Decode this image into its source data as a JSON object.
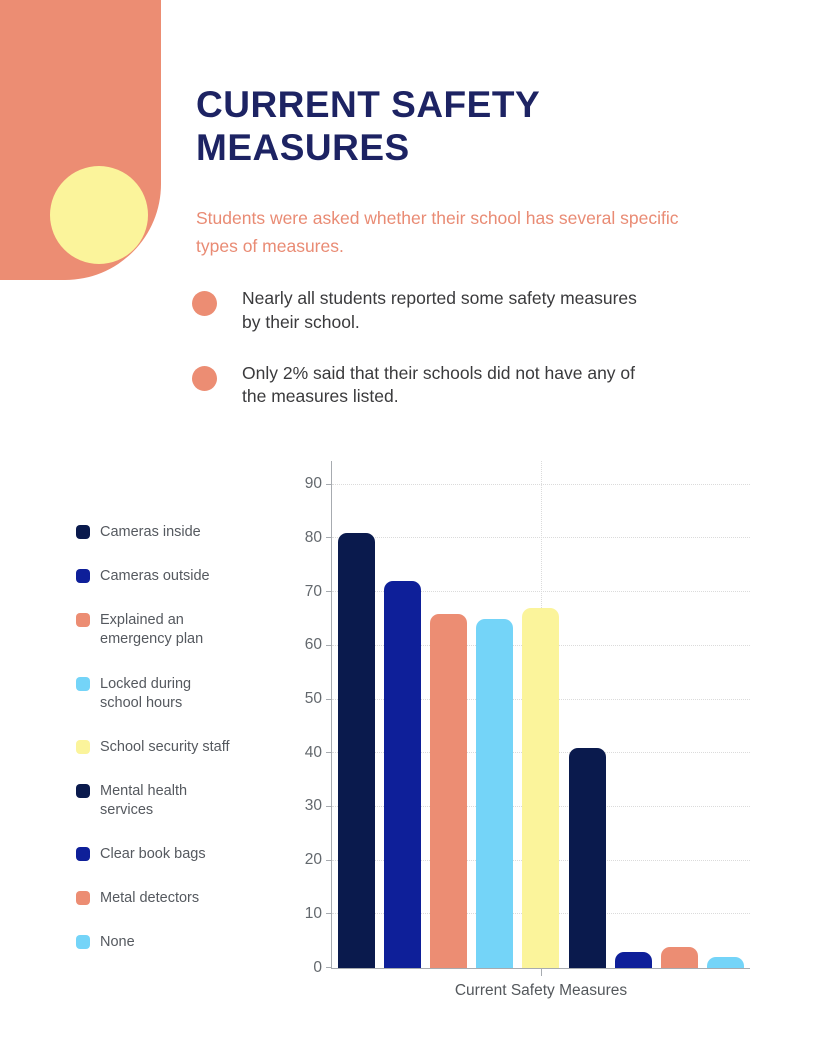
{
  "page": {
    "title": "CURRENT SAFETY\nMEASURES",
    "subtitle": "Students were asked whether their school has several specific\ntypes of measures.",
    "bullets": [
      {
        "text": "Nearly all students reported some safety measures\nby their school."
      },
      {
        "text": "Only 2%  said that their schools did not have any of\nthe measures listed."
      }
    ]
  },
  "colors": {
    "coral": "#EC8D73",
    "pale_yellow": "#FBF49B",
    "navy_dark": "#0A1A4D",
    "royal_blue": "#0E1F99",
    "light_blue": "#74D4F8",
    "title_navy": "#1D2363"
  },
  "chart_data": {
    "type": "bar",
    "title": "",
    "xlabel": "Current Safety Measures",
    "ylabel": "",
    "ylim": [
      0,
      94
    ],
    "yticks": [
      0,
      10,
      20,
      30,
      40,
      50,
      60,
      70,
      80,
      90
    ],
    "grid": "horizontal dotted gridlines plus one dotted vertical gridline at plot center",
    "legend_position": "left",
    "categories": [
      "Cameras inside",
      "Cameras outside",
      "Explained an emergency plan",
      "Locked during school hours",
      "School security staff",
      "Mental health services",
      "Clear book bags",
      "Metal detectors",
      "None"
    ],
    "legend_labels_display": [
      "Cameras inside",
      "Cameras outside",
      "Explained an\nemergency plan",
      "Locked during\nschool hours",
      "School security staff",
      "Mental health\nservices",
      "Clear book bags",
      "Metal detectors",
      "None"
    ],
    "values": [
      81,
      72,
      66,
      65,
      67,
      41,
      3,
      4,
      2
    ],
    "bar_colors": [
      "#0A1A4D",
      "#0E1F99",
      "#EC8D73",
      "#74D4F8",
      "#FBF49B",
      "#0A1A4D",
      "#0E1F99",
      "#EC8D73",
      "#74D4F8"
    ]
  }
}
